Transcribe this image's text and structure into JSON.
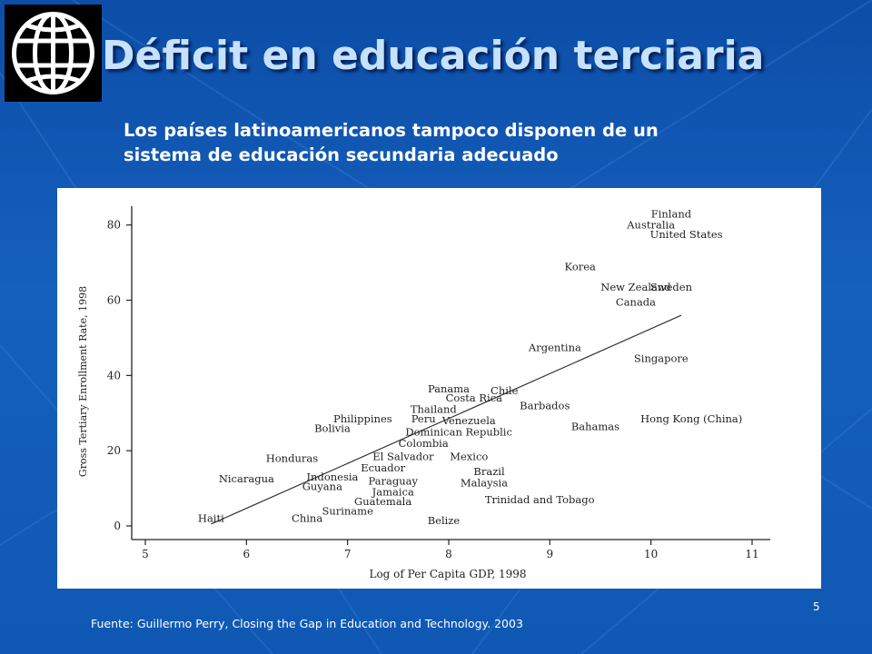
{
  "slide": {
    "title": "Déficit en educación terciaria",
    "subtitle_line1": "Los países latinoamericanos tampoco disponen de un",
    "subtitle_line2": "sistema de educación secundaria adecuado",
    "source": "Fuente:  Guillermo Perry, Closing the Gap in Education and Technology. 2003",
    "page_number": "5",
    "logo_icon": "world-bank-globe-icon"
  },
  "colors": {
    "background": "#1560bd",
    "title": "#c6e2ff",
    "text": "#ffffff",
    "chart_bg": "#ffffff",
    "ink": "#222222"
  },
  "chart_data": {
    "type": "scatter",
    "xlabel": "Log of Per Capita GDP, 1998",
    "ylabel": "Gross Tertiary Enrollment Rate, 1998",
    "xlim": [
      5,
      11
    ],
    "ylim": [
      0,
      85
    ],
    "x_ticks": [
      5,
      6,
      7,
      8,
      9,
      10,
      11
    ],
    "y_ticks": [
      0,
      20,
      40,
      60,
      80
    ],
    "grid": false,
    "points": [
      {
        "label": "Finland",
        "x": 10.2,
        "y": 83
      },
      {
        "label": "Australia",
        "x": 10.0,
        "y": 80
      },
      {
        "label": "United States",
        "x": 10.35,
        "y": 77.5
      },
      {
        "label": "Korea",
        "x": 9.3,
        "y": 69
      },
      {
        "label": "New Zealand",
        "x": 9.85,
        "y": 63.5
      },
      {
        "label": "Sweden",
        "x": 10.2,
        "y": 63.5
      },
      {
        "label": "Canada",
        "x": 9.85,
        "y": 59.5
      },
      {
        "label": "Argentina",
        "x": 9.05,
        "y": 47.5
      },
      {
        "label": "Singapore",
        "x": 10.1,
        "y": 44.5
      },
      {
        "label": "Panama",
        "x": 8.0,
        "y": 36.5
      },
      {
        "label": "Chile",
        "x": 8.55,
        "y": 36
      },
      {
        "label": "Costa Rica",
        "x": 8.25,
        "y": 34
      },
      {
        "label": "Barbados",
        "x": 8.95,
        "y": 32
      },
      {
        "label": "Thailand",
        "x": 7.85,
        "y": 31
      },
      {
        "label": "Philippines",
        "x": 7.15,
        "y": 28.5
      },
      {
        "label": "Peru",
        "x": 7.75,
        "y": 28.5
      },
      {
        "label": "Venezuela",
        "x": 8.2,
        "y": 28
      },
      {
        "label": "Hong Kong (China)",
        "x": 10.4,
        "y": 28.5
      },
      {
        "label": "Bolivia",
        "x": 6.85,
        "y": 26
      },
      {
        "label": "Bahamas",
        "x": 9.45,
        "y": 26.5
      },
      {
        "label": "Dominican Republic",
        "x": 8.1,
        "y": 25
      },
      {
        "label": "Colombia",
        "x": 7.75,
        "y": 22
      },
      {
        "label": "El Salvador",
        "x": 7.55,
        "y": 18.5
      },
      {
        "label": "Mexico",
        "x": 8.2,
        "y": 18.5
      },
      {
        "label": "Honduras",
        "x": 6.45,
        "y": 18
      },
      {
        "label": "Ecuador",
        "x": 7.35,
        "y": 15.5
      },
      {
        "label": "Brazil",
        "x": 8.4,
        "y": 14.5
      },
      {
        "label": "Nicaragua",
        "x": 6.0,
        "y": 12.5
      },
      {
        "label": "Indonesia",
        "x": 6.85,
        "y": 13
      },
      {
        "label": "Paraguay",
        "x": 7.45,
        "y": 12
      },
      {
        "label": "Malaysia",
        "x": 8.35,
        "y": 11.5
      },
      {
        "label": "Guyana",
        "x": 6.75,
        "y": 10.5
      },
      {
        "label": "Jamaica",
        "x": 7.45,
        "y": 9
      },
      {
        "label": "Guatemala",
        "x": 7.35,
        "y": 6.5
      },
      {
        "label": "Trinidad and Tobago",
        "x": 8.9,
        "y": 7
      },
      {
        "label": "Suriname",
        "x": 7.0,
        "y": 4
      },
      {
        "label": "Haiti",
        "x": 5.65,
        "y": 2
      },
      {
        "label": "China",
        "x": 6.6,
        "y": 2
      },
      {
        "label": "Belize",
        "x": 7.95,
        "y": 1.5
      }
    ],
    "trend_line": {
      "x": [
        5.65,
        10.3
      ],
      "y": [
        0.5,
        56
      ]
    }
  }
}
